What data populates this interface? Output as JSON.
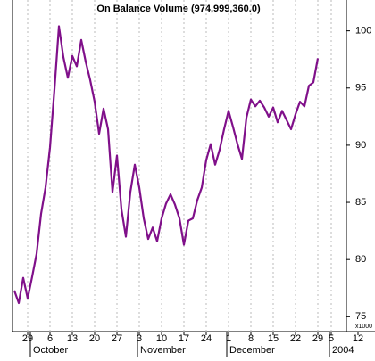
{
  "chart_data": {
    "type": "line",
    "title": "On Balance Volume (974,999,360.0)",
    "x": [
      0,
      1,
      2,
      3,
      4,
      5,
      6,
      7,
      8,
      9,
      10,
      11,
      12,
      13,
      14,
      15,
      16,
      17,
      18,
      19,
      20,
      21,
      22,
      23,
      24,
      25,
      26,
      27,
      28,
      29,
      30,
      31,
      32,
      33,
      34,
      35,
      36,
      37,
      38,
      39,
      40,
      41,
      42,
      43,
      44,
      45,
      46,
      47,
      48,
      49,
      50,
      51,
      52,
      53,
      54,
      55,
      56,
      57,
      58,
      59,
      60,
      61,
      62,
      63,
      64,
      65,
      66,
      67,
      68
    ],
    "series": [
      {
        "name": "On Balance Volume",
        "color": "#80108a",
        "values": [
          77.3,
          76.2,
          78.4,
          76.6,
          78.5,
          80.5,
          84.0,
          86.3,
          89.8,
          94.9,
          100.4,
          97.7,
          95.9,
          97.8,
          96.9,
          99.2,
          97.3,
          95.7,
          93.8,
          91.0,
          93.2,
          91.4,
          85.9,
          89.1,
          84.4,
          82.0,
          85.9,
          88.3,
          86.3,
          83.6,
          81.8,
          82.8,
          81.6,
          83.6,
          84.9,
          85.7,
          84.8,
          83.6,
          81.3,
          83.4,
          83.6,
          85.2,
          86.3,
          88.7,
          90.1,
          88.3,
          89.6,
          91.4,
          93.0,
          91.6,
          90.1,
          88.8,
          92.4,
          94.0,
          93.4,
          93.9,
          93.3,
          92.5,
          93.3,
          92.0,
          93.0,
          92.2,
          91.4,
          92.7,
          93.8,
          93.4,
          95.2,
          95.5,
          97.6
        ]
      }
    ],
    "xlim": [
      0,
      74
    ],
    "xticks": [
      {
        "value": 3,
        "label": "29"
      },
      {
        "value": 8,
        "label": "6"
      },
      {
        "value": 13,
        "label": "13"
      },
      {
        "value": 18,
        "label": "20"
      },
      {
        "value": 23,
        "label": "27"
      },
      {
        "value": 28,
        "label": "3"
      },
      {
        "value": 33,
        "label": "10"
      },
      {
        "value": 38,
        "label": "17"
      },
      {
        "value": 43,
        "label": "24"
      },
      {
        "value": 48,
        "label": "1"
      },
      {
        "value": 53,
        "label": "8"
      },
      {
        "value": 58,
        "label": "15"
      },
      {
        "value": 63,
        "label": "22"
      },
      {
        "value": 68,
        "label": "29"
      },
      {
        "value": 71,
        "label": "5"
      },
      {
        "value": 77,
        "label": "12"
      }
    ],
    "month_labels": [
      {
        "value": 4,
        "label": "October"
      },
      {
        "value": 28,
        "label": "November"
      },
      {
        "value": 48,
        "label": "December"
      },
      {
        "value": 71,
        "label": "2004"
      }
    ],
    "ylim": [
      73.7,
      102.7
    ],
    "yticks": [
      75,
      80,
      85,
      90,
      95,
      100
    ],
    "y_unit": "x1000",
    "grid": true
  }
}
